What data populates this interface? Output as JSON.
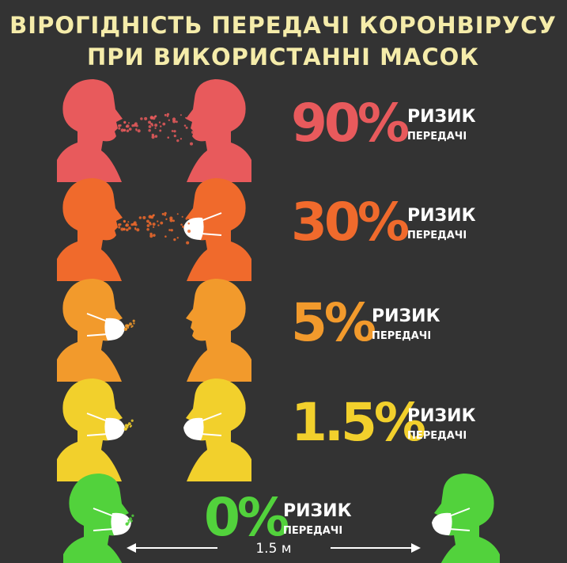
{
  "header": {
    "title_line1": "ВІРОГІДНІСТЬ ПЕРЕДАЧІ КОРОНВІРУСУ",
    "title_line2": "ПРИ ВИКОРИСТАННІ  МАСОК"
  },
  "rows": [
    {
      "risk": "90%",
      "label": "РИЗИК",
      "sublabel": "ПЕРЕДАЧІ",
      "color": "#e85a5c"
    },
    {
      "risk": "30%",
      "label": "РИЗИК",
      "sublabel": "ПЕРЕДАЧІ",
      "color": "#f06a2c"
    },
    {
      "risk": "5%",
      "label": "РИЗИК",
      "sublabel": "ПЕРЕДАЧІ",
      "color": "#f29a2c"
    },
    {
      "risk": "1.5%",
      "label": "РИЗИК",
      "sublabel": "ПЕРЕДАЧІ",
      "color": "#f2d02c"
    },
    {
      "risk": "0%",
      "label": "РИЗИК",
      "sublabel": "ПЕРЕДАЧІ",
      "color": "#52d23c"
    }
  ],
  "distance": "1.5 м"
}
